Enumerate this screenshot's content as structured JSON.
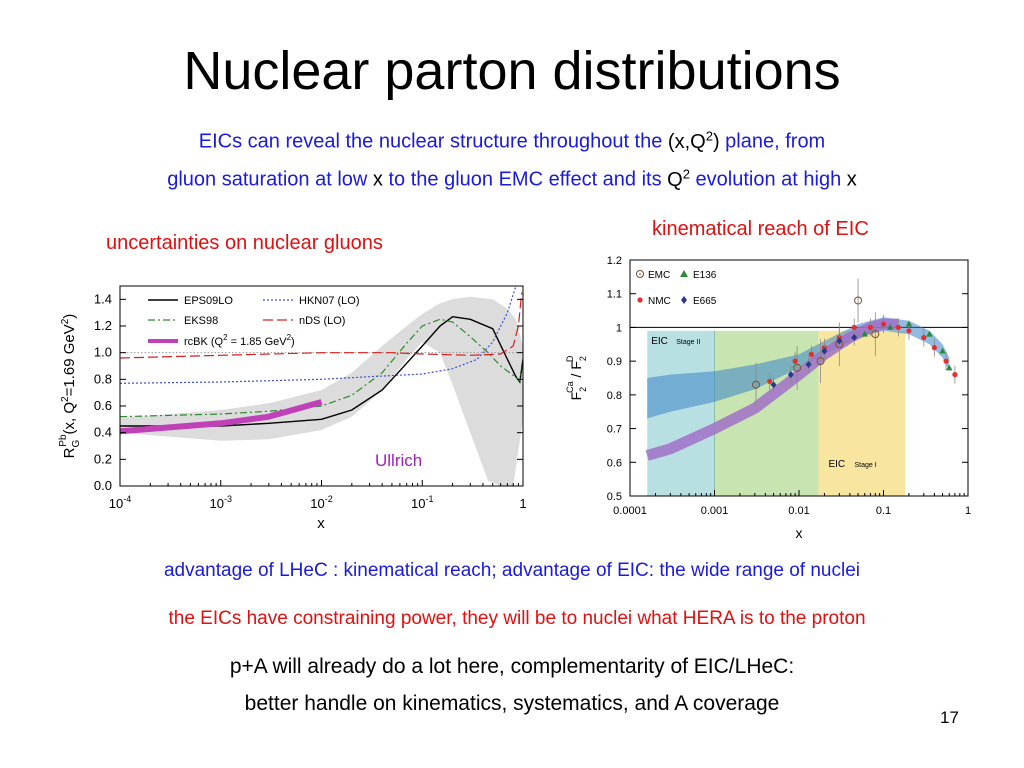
{
  "slide": {
    "title": "Nuclear parton distributions",
    "intro_l1_a": "EICs can reveal the nuclear structure throughout the",
    "intro_l1_b": "(x,Q",
    "intro_l1_sup": "2",
    "intro_l1_c": ")",
    "intro_l1_d": "plane, from",
    "intro_l2_a": "gluon saturation at low",
    "intro_l2_b": "x",
    "intro_l2_c": "to the gluon EMC effect and its",
    "intro_l2_d": "Q",
    "intro_l2_sup": "2",
    "intro_l2_e": "evolution at high",
    "intro_l2_f": "x",
    "left_heading": "uncertainties on nuclear gluons",
    "right_heading": "kinematical reach of EIC",
    "advantage": "advantage of LHeC : kinematical reach; advantage of EIC: the wide range of nuclei",
    "constraining": "the EICs have constraining power, they will be to nuclei what HERA is to the proton",
    "pa_line1": "p+A will already do a lot here, complementarity of EIC/LHeC:",
    "pa_line2": "better handle on kinematics, systematics, and A coverage",
    "page_number": "17",
    "colors": {
      "title": "#000000",
      "blue_text": "#1a1adf",
      "red_text": "#e01010"
    }
  },
  "chart_data": [
    {
      "type": "line",
      "xscale": "log",
      "xlim": [
        0.0001,
        1
      ],
      "ylim": [
        0.0,
        1.5
      ],
      "xlabel": "x",
      "ylabel_main": "R",
      "ylabel_sub": "G",
      "ylabel_sup": "Pb",
      "ylabel_rest_a": "(x, Q",
      "ylabel_rest_sup": "2",
      "ylabel_rest_b": "=1.69 GeV",
      "ylabel_rest_sup2": "2",
      "ylabel_rest_c": ")",
      "x_ticks": [
        {
          "v": 0.0001,
          "b": "10",
          "e": "-4"
        },
        {
          "v": 0.001,
          "b": "10",
          "e": "-3"
        },
        {
          "v": 0.01,
          "b": "10",
          "e": "-2"
        },
        {
          "v": 0.1,
          "b": "10",
          "e": "-1"
        },
        {
          "v": 1,
          "b": "1",
          "e": ""
        }
      ],
      "y_ticks": [
        "0.0",
        "0.2",
        "0.4",
        "0.6",
        "0.8",
        "1.0",
        "1.2",
        "1.4"
      ],
      "annotation": "Ullrich",
      "legend": [
        {
          "label": "EPS09LO",
          "style": "eps"
        },
        {
          "label": "HKN07 (LO)",
          "style": "hkn"
        },
        {
          "label": "EKS98",
          "style": "eks"
        },
        {
          "label": "nDS (LO)",
          "style": "nds"
        },
        {
          "label": "rcBK (Q",
          "sup": "2",
          "label2": " = 1.85 GeV",
          "sup2": "2",
          "label3": ")",
          "style": "rcbk"
        }
      ],
      "band_upper": [
        [
          0.0001,
          0.51
        ],
        [
          0.001,
          0.57
        ],
        [
          0.003,
          0.62
        ],
        [
          0.01,
          0.72
        ],
        [
          0.02,
          0.85
        ],
        [
          0.04,
          1.05
        ],
        [
          0.07,
          1.2
        ],
        [
          0.1,
          1.29
        ],
        [
          0.15,
          1.37
        ],
        [
          0.2,
          1.4
        ],
        [
          0.3,
          1.42
        ],
        [
          0.5,
          1.4
        ],
        [
          0.7,
          1.33
        ],
        [
          0.85,
          1.25
        ],
        [
          1,
          1.05
        ]
      ],
      "band_lower": [
        [
          0.0001,
          0.4
        ],
        [
          0.001,
          0.34
        ],
        [
          0.003,
          0.35
        ],
        [
          0.01,
          0.42
        ],
        [
          0.02,
          0.52
        ],
        [
          0.04,
          0.72
        ],
        [
          0.07,
          0.95
        ],
        [
          0.1,
          1.08
        ],
        [
          0.15,
          1.0
        ],
        [
          0.2,
          0.76
        ],
        [
          0.3,
          0.4
        ],
        [
          0.45,
          0.04
        ],
        [
          0.6,
          0.0
        ],
        [
          0.8,
          0.0
        ],
        [
          1,
          0.5
        ]
      ],
      "series": [
        {
          "name": "EPS09LO",
          "style": "eps",
          "points": [
            [
              0.0001,
              0.45
            ],
            [
              0.001,
              0.45
            ],
            [
              0.003,
              0.47
            ],
            [
              0.01,
              0.5
            ],
            [
              0.02,
              0.57
            ],
            [
              0.04,
              0.72
            ],
            [
              0.07,
              0.92
            ],
            [
              0.1,
              1.05
            ],
            [
              0.15,
              1.2
            ],
            [
              0.2,
              1.27
            ],
            [
              0.3,
              1.25
            ],
            [
              0.5,
              1.18
            ],
            [
              0.7,
              0.95
            ],
            [
              0.85,
              0.82
            ],
            [
              0.93,
              0.78
            ],
            [
              1,
              0.95
            ]
          ]
        },
        {
          "name": "HKN07 (LO)",
          "style": "hkn",
          "points": [
            [
              0.0001,
              0.77
            ],
            [
              0.001,
              0.78
            ],
            [
              0.01,
              0.8
            ],
            [
              0.03,
              0.82
            ],
            [
              0.1,
              0.84
            ],
            [
              0.2,
              0.88
            ],
            [
              0.35,
              0.95
            ],
            [
              0.5,
              1.08
            ],
            [
              0.7,
              1.3
            ],
            [
              0.85,
              1.5
            ]
          ]
        },
        {
          "name": "EKS98",
          "style": "eks",
          "points": [
            [
              0.0001,
              0.52
            ],
            [
              0.001,
              0.54
            ],
            [
              0.003,
              0.56
            ],
            [
              0.01,
              0.6
            ],
            [
              0.02,
              0.68
            ],
            [
              0.04,
              0.85
            ],
            [
              0.07,
              1.07
            ],
            [
              0.1,
              1.2
            ],
            [
              0.15,
              1.25
            ],
            [
              0.2,
              1.23
            ],
            [
              0.3,
              1.12
            ],
            [
              0.45,
              1.0
            ],
            [
              0.6,
              0.9
            ],
            [
              0.8,
              0.83
            ],
            [
              0.93,
              0.79
            ],
            [
              1,
              0.9
            ]
          ]
        },
        {
          "name": "nDS (LO)",
          "style": "nds",
          "points": [
            [
              0.0001,
              0.96
            ],
            [
              0.001,
              0.98
            ],
            [
              0.01,
              1.0
            ],
            [
              0.05,
              1.0
            ],
            [
              0.1,
              0.99
            ],
            [
              0.3,
              0.98
            ],
            [
              0.6,
              0.99
            ],
            [
              0.8,
              1.05
            ],
            [
              0.9,
              1.2
            ],
            [
              0.97,
              1.45
            ]
          ]
        },
        {
          "name": "rcBK",
          "style": "rcbk",
          "points": [
            [
              0.0001,
              0.41
            ],
            [
              0.001,
              0.47
            ],
            [
              0.003,
              0.52
            ],
            [
              0.01,
              0.63
            ]
          ]
        }
      ]
    },
    {
      "type": "scatter",
      "xscale": "log",
      "xlim": [
        0.0001,
        1
      ],
      "ylim": [
        0.5,
        1.2
      ],
      "xlabel": "x",
      "ylabel": "F2Ca / F2D",
      "x_ticks": [
        "0.0001",
        "0.001",
        "0.01",
        "0.1",
        "1"
      ],
      "y_ticks": [
        "0.5",
        "0.6",
        "0.7",
        "0.8",
        "0.9",
        "1",
        "1.1",
        "1.2"
      ],
      "regions": [
        {
          "name": "EIC Stage II",
          "xlo": 0.00016,
          "xhi": 0.017,
          "ytop": 0.99,
          "label": "EIC",
          "sublabel": "Stage II",
          "color": "#a8d8d8"
        },
        {
          "name": "EIC Stage I",
          "xlo": 0.017,
          "xhi": 0.18,
          "ytop": 0.99,
          "label": "EIC",
          "sublabel": "Stage I",
          "color": "#f8e49a"
        }
      ],
      "reference_line": 1.0,
      "legend": [
        "EMC",
        "E136",
        "NMC",
        "E665"
      ],
      "bands": [
        {
          "name": "LHeC projection (blue)",
          "points": [
            [
              0.00016,
              0.83
            ],
            [
              0.0003,
              0.84
            ],
            [
              0.001,
              0.85
            ],
            [
              0.003,
              0.87
            ],
            [
              0.01,
              0.9
            ],
            [
              0.02,
              0.94
            ],
            [
              0.05,
              0.99
            ],
            [
              0.1,
              1.01
            ],
            [
              0.2,
              1.0
            ],
            [
              0.35,
              0.97
            ],
            [
              0.5,
              0.93
            ],
            [
              0.6,
              0.89
            ]
          ],
          "color": "#3b84c8"
        },
        {
          "name": "EIC projection (purple)",
          "points": [
            [
              0.00016,
              0.62
            ],
            [
              0.0003,
              0.64
            ],
            [
              0.001,
              0.7
            ],
            [
              0.003,
              0.76
            ],
            [
              0.007,
              0.83
            ],
            [
              0.01,
              0.86
            ],
            [
              0.02,
              0.92
            ],
            [
              0.04,
              0.97
            ],
            [
              0.07,
              1.0
            ],
            [
              0.1,
              1.01
            ],
            [
              0.15,
              1.01
            ]
          ],
          "color": "#a070c8"
        }
      ],
      "data": {
        "EMC": [
          [
            0.0031,
            0.83
          ],
          [
            0.0095,
            0.88
          ],
          [
            0.018,
            0.9
          ],
          [
            0.03,
            0.95
          ],
          [
            0.05,
            1.08
          ],
          [
            0.08,
            0.98
          ]
        ],
        "NMC": [
          [
            0.0045,
            0.84
          ],
          [
            0.009,
            0.9
          ],
          [
            0.014,
            0.92
          ],
          [
            0.02,
            0.94
          ],
          [
            0.03,
            0.97
          ],
          [
            0.045,
            1.0
          ],
          [
            0.07,
            1.0
          ],
          [
            0.1,
            1.01
          ],
          [
            0.15,
            1.0
          ],
          [
            0.2,
            0.99
          ],
          [
            0.3,
            0.97
          ],
          [
            0.4,
            0.94
          ],
          [
            0.55,
            0.9
          ],
          [
            0.7,
            0.86
          ]
        ],
        "E136": [
          [
            0.06,
            0.98
          ],
          [
            0.12,
            1.0
          ],
          [
            0.2,
            1.01
          ],
          [
            0.35,
            0.98
          ],
          [
            0.5,
            0.93
          ],
          [
            0.6,
            0.88
          ]
        ],
        "E665": [
          [
            0.005,
            0.83
          ],
          [
            0.008,
            0.86
          ],
          [
            0.013,
            0.89
          ],
          [
            0.02,
            0.93
          ],
          [
            0.03,
            0.96
          ],
          [
            0.045,
            0.97
          ]
        ]
      }
    }
  ]
}
